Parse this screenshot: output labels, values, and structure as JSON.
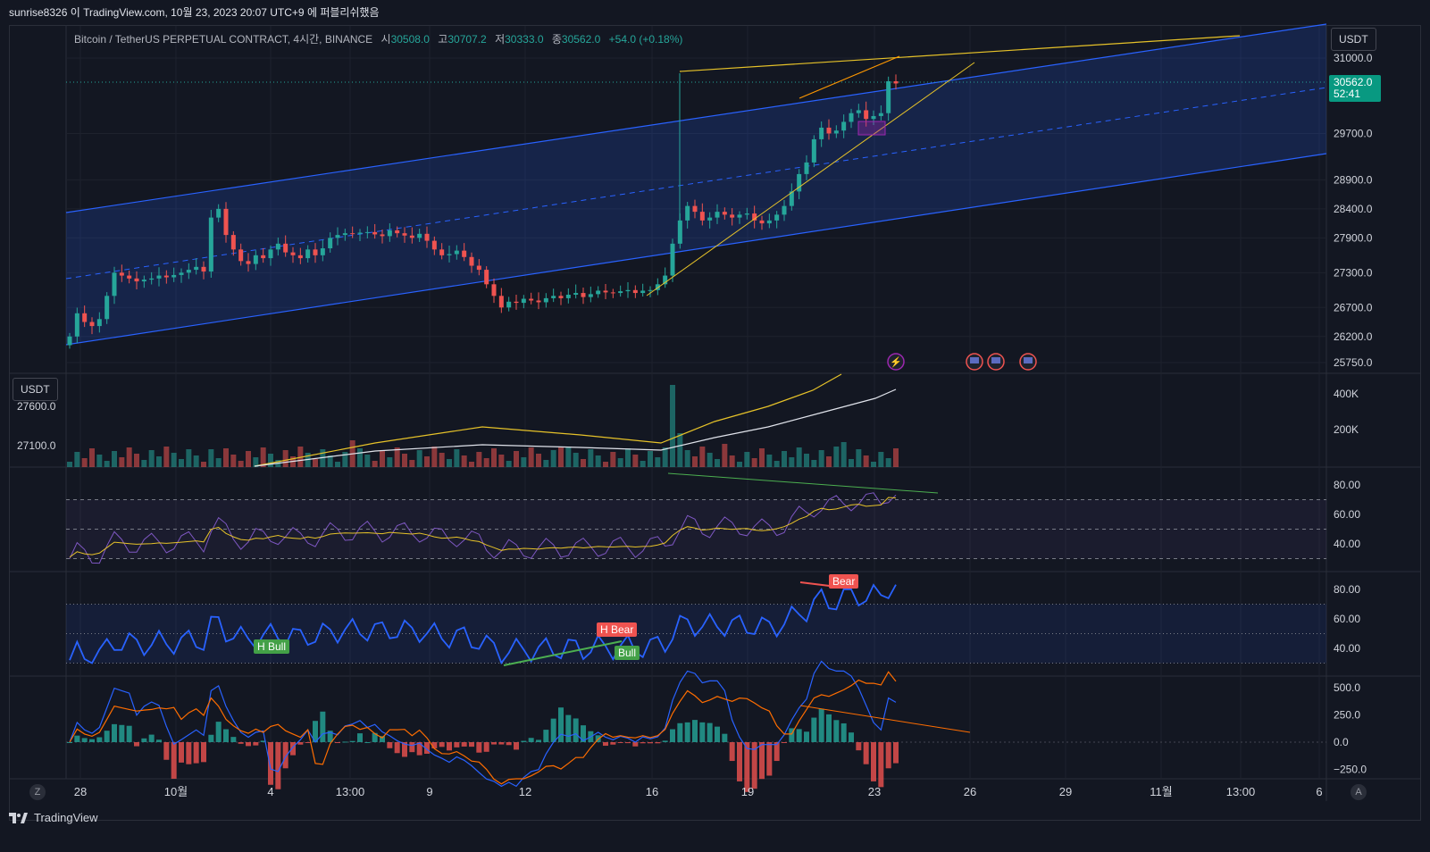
{
  "header": {
    "watermark": "sunrise8326 이 TradingView.com, 10월 23, 2023 20:07 UTC+9 에 퍼블리쉬했음"
  },
  "legend": {
    "symbol": "Bitcoin / TetherUS PERPETUAL CONTRACT, 4시간, BINANCE",
    "o_label": "시",
    "o": "30508.0",
    "h_label": "고",
    "h": "30707.2",
    "l_label": "저",
    "l": "30333.0",
    "c_label": "종",
    "c": "30562.0",
    "change": "+54.0 (+0.18%)"
  },
  "unit_top": "USDT",
  "unit_left": "USDT",
  "price_tag": {
    "price": "30562.0",
    "countdown": "52:41"
  },
  "price_axis": [
    "31000.0",
    "29700.0",
    "28900.0",
    "28400.0",
    "27900.0",
    "27300.0",
    "26700.0",
    "26200.0",
    "25750.0"
  ],
  "volume_axis": [
    "400K",
    "200K"
  ],
  "volume_left_labels": [
    "27600.0",
    "27100.0"
  ],
  "rsi_axis": [
    "80.00",
    "60.00",
    "40.00"
  ],
  "stoch_axis": [
    "80.00",
    "60.00",
    "40.00"
  ],
  "macd_axis": [
    "500.0",
    "250.0",
    "0.0",
    "−250.0"
  ],
  "time_axis": [
    "28",
    "10월",
    "4",
    "13:00",
    "9",
    "12",
    "16",
    "19",
    "23",
    "26",
    "29",
    "11월",
    "13:00",
    "6"
  ],
  "signals": {
    "h_bull": "H Bull",
    "h_bear": "H Bear",
    "bull": "Bull",
    "bear": "Bear"
  },
  "bottom": {
    "logo": "TradingView",
    "z": "Z",
    "a": "A"
  },
  "colors": {
    "up": "#26a69a",
    "down": "#ef5350",
    "channel": "#2962ff",
    "trend": "#f0c419",
    "rsi": "#7e57c2",
    "stoch": "#2962ff",
    "macd_signal": "#ff6d00",
    "price_tag": "#089981"
  },
  "chart_data": {
    "type": "candlestick",
    "series": [
      {
        "name": "BTCUSDT 4h",
        "close": [
          26200,
          26600,
          26450,
          26380,
          26500,
          26900,
          27300,
          27250,
          27200,
          27150,
          27180,
          27200,
          27250,
          27220,
          27260,
          27300,
          27350,
          27400,
          27320,
          28250,
          28400,
          27950,
          27700,
          27500,
          27450,
          27600,
          27550,
          27700,
          27800,
          27650,
          27600,
          27550,
          27700,
          27600,
          27720,
          27900,
          27950,
          27980,
          27970,
          27990,
          28000,
          27960,
          27930,
          28030,
          27980,
          27940,
          27900,
          27970,
          27850,
          27700,
          27600,
          27620,
          27680,
          27570,
          27420,
          27350,
          27100,
          26900,
          26700,
          26800,
          26780,
          26850,
          26820,
          26790,
          26860,
          26900,
          26860,
          26920,
          26950,
          26880,
          26930,
          26990,
          26960,
          26950,
          26980,
          27000,
          26950,
          26990,
          27000,
          27100,
          27250,
          27800,
          28200,
          28450,
          28350,
          28200,
          28250,
          28350,
          28300,
          28250,
          28300,
          28320,
          28200,
          28150,
          28200,
          28300,
          28450,
          28700,
          29000,
          29200,
          29600,
          29800,
          29700,
          29750,
          29900,
          30050,
          30100,
          29950,
          30000,
          30050,
          30600,
          30562
        ]
      }
    ],
    "rsi": {
      "levels": [
        80,
        60,
        40
      ]
    },
    "stochrsi": {
      "levels": [
        80,
        60,
        40
      ]
    },
    "macd": {
      "range": [
        -250,
        500
      ]
    }
  }
}
